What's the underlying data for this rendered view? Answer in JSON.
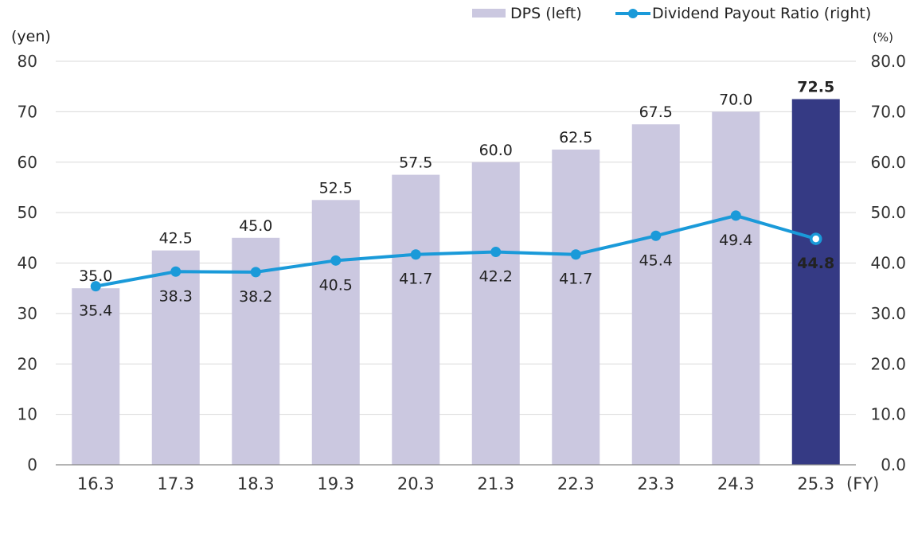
{
  "chart_data": {
    "type": "bar",
    "categories": [
      "16.3",
      "17.3",
      "18.3",
      "19.3",
      "20.3",
      "21.3",
      "22.3",
      "23.3",
      "24.3",
      "25.3"
    ],
    "x_suffix": "(FY)",
    "series": [
      {
        "name": "DPS (left)",
        "kind": "bar",
        "axis": "left",
        "values": [
          35.0,
          42.5,
          45.0,
          52.5,
          57.5,
          60.0,
          62.5,
          67.5,
          70.0,
          72.5
        ],
        "labels": [
          "35.0",
          "42.5",
          "45.0",
          "52.5",
          "57.5",
          "60.0",
          "62.5",
          "67.5",
          "70.0",
          "72.5"
        ],
        "color": "#cbc8e0",
        "highlight_color": "#353a84",
        "highlight_index": 9
      },
      {
        "name": "Dividend Payout Ratio (right)",
        "kind": "line",
        "axis": "right",
        "values": [
          35.4,
          38.3,
          38.2,
          40.5,
          41.7,
          42.2,
          41.7,
          45.4,
          49.4,
          44.8
        ],
        "labels": [
          "35.4",
          "38.3",
          "38.2",
          "40.5",
          "41.7",
          "42.2",
          "41.7",
          "45.4",
          "49.4",
          "44.8"
        ],
        "color": "#1a9ad9"
      }
    ],
    "y_left": {
      "unit": "(yen)",
      "ylim": [
        0,
        80
      ],
      "ticks": [
        "0",
        "10",
        "20",
        "30",
        "40",
        "50",
        "60",
        "70",
        "80"
      ]
    },
    "y_right": {
      "unit": "(%)",
      "ylim": [
        0,
        80
      ],
      "ticks": [
        "0.0",
        "10.0",
        "20.0",
        "30.0",
        "40.0",
        "50.0",
        "60.0",
        "70.0",
        "80.0"
      ]
    },
    "legend": {
      "position": "top-right",
      "items": [
        "DPS (left)",
        "Dividend Payout Ratio (right)"
      ]
    },
    "grid": true
  }
}
